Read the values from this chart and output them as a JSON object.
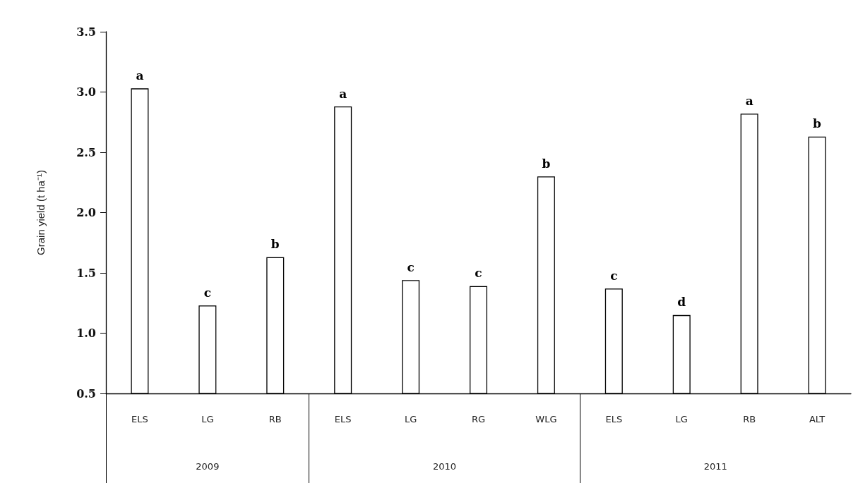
{
  "chart_data": {
    "type": "bar",
    "ylabel": "Grain yield (t ha⁻¹)",
    "categories": [
      "ELS",
      "LG",
      "RB",
      "ELS",
      "LG",
      "RG",
      "WLG",
      "ELS",
      "LG",
      "RB",
      "ALT"
    ],
    "values": [
      3.03,
      1.23,
      1.63,
      2.88,
      1.44,
      1.39,
      2.3,
      1.37,
      1.15,
      2.82,
      2.63
    ],
    "value_labels": [
      "a",
      "c",
      "b",
      "a",
      "c",
      "c",
      "b",
      "c",
      "d",
      "a",
      "b"
    ],
    "color": "#ffffff",
    "ylim": [
      0.5,
      3.5
    ],
    "yticks": [
      {
        "value": 0.5,
        "label": "0.5"
      },
      {
        "value": 1,
        "label": "1.0"
      },
      {
        "value": 1.5,
        "label": "1.5"
      },
      {
        "value": 2,
        "label": "2.0"
      },
      {
        "value": 2.5,
        "label": "2.5"
      },
      {
        "value": 3,
        "label": "3.0"
      },
      {
        "value": 3.5,
        "label": "3.5"
      }
    ],
    "annotations": [
      "2009",
      "2010",
      "2011"
    ],
    "grid": false
  }
}
